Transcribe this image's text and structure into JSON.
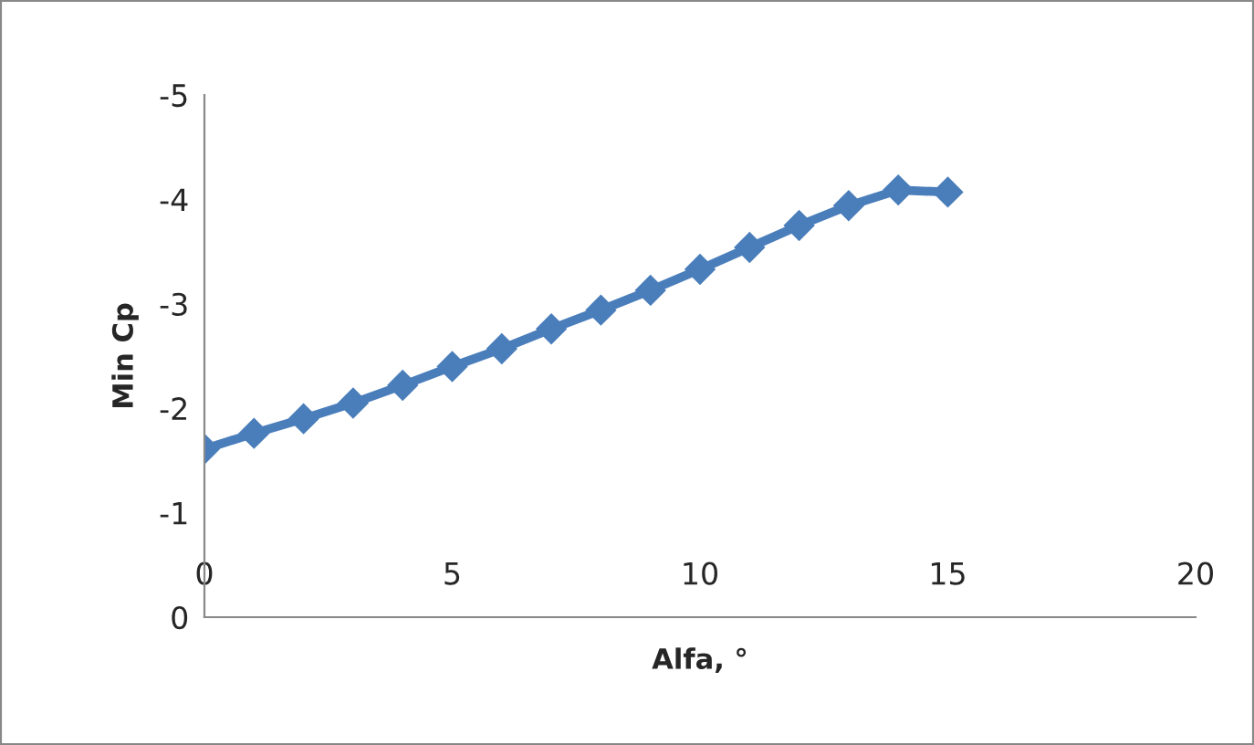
{
  "chart_data": {
    "type": "line",
    "xlabel": "Alfa, °",
    "ylabel": "Min Cp",
    "x": [
      0,
      1,
      2,
      3,
      4,
      5,
      6,
      7,
      8,
      9,
      10,
      11,
      12,
      13,
      14,
      15
    ],
    "series": [
      {
        "color": "#4a7ebb",
        "values": [
          -1.61,
          -1.76,
          -1.9,
          -2.05,
          -2.22,
          -2.4,
          -2.57,
          -2.76,
          -2.94,
          -3.13,
          -3.33,
          -3.54,
          -3.75,
          -3.94,
          -4.09,
          -4.07
        ]
      }
    ],
    "xlim": [
      0,
      20
    ],
    "xticks": [
      0,
      5,
      10,
      15,
      20
    ],
    "ylim": [
      0,
      -5
    ],
    "yticks": [
      -5,
      -4,
      -3,
      -2,
      -1,
      0
    ],
    "marker": "diamond",
    "grid": false,
    "legend": false
  }
}
